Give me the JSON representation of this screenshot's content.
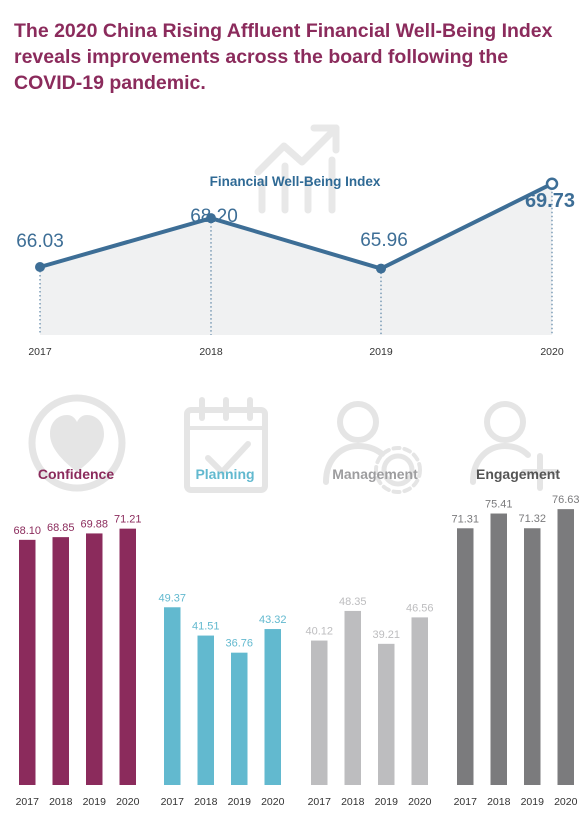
{
  "headline": {
    "line1": "The 2020 China Rising Affluent Financial Well-Being Index",
    "line2": "reveals improvements across the board following the",
    "line3": "COVID-19 pandemic."
  },
  "colors": {
    "headline": "#8b2b5c",
    "line_chart": "#3d6e96",
    "line_chart_title": "#2f6a95",
    "confidence": "#8b2b5c",
    "planning": "#62b9cf",
    "management": "#bdbdbf",
    "engagement": "#7b7b7d",
    "icon_gray": "#e5e5e5"
  },
  "chart_data": [
    {
      "type": "line",
      "title": "Financial Well-Being Index",
      "x": [
        "2017",
        "2018",
        "2019",
        "2020"
      ],
      "values": [
        66.03,
        68.2,
        65.96,
        69.73
      ],
      "data_labels": [
        "66.03",
        "68.20",
        "65.96",
        "69.73"
      ],
      "fill_under": true,
      "grid": false
    },
    {
      "type": "bar",
      "title": "Confidence",
      "icon": "heart-icon",
      "categories": [
        "2017",
        "2018",
        "2019",
        "2020"
      ],
      "values": [
        68.1,
        68.85,
        69.88,
        71.21
      ],
      "data_labels": [
        "68.10",
        "68.85",
        "69.88",
        "71.21"
      ],
      "color": "#8b2b5c"
    },
    {
      "type": "bar",
      "title": "Planning",
      "icon": "calendar-check-icon",
      "categories": [
        "2017",
        "2018",
        "2019",
        "2020"
      ],
      "values": [
        49.37,
        41.51,
        36.76,
        43.32
      ],
      "data_labels": [
        "49.37",
        "41.51",
        "36.76",
        "43.32"
      ],
      "color": "#62b9cf"
    },
    {
      "type": "bar",
      "title": "Management",
      "icon": "person-gear-icon",
      "categories": [
        "2017",
        "2018",
        "2019",
        "2020"
      ],
      "values": [
        40.12,
        48.35,
        39.21,
        46.56
      ],
      "data_labels": [
        "40.12",
        "48.35",
        "39.21",
        "46.56"
      ],
      "color": "#bdbdbf"
    },
    {
      "type": "bar",
      "title": "Engagement",
      "icon": "person-plus-icon",
      "categories": [
        "2017",
        "2018",
        "2019",
        "2020"
      ],
      "values": [
        71.31,
        75.41,
        71.32,
        76.63
      ],
      "data_labels": [
        "71.31",
        "75.41",
        "71.32",
        "76.63"
      ],
      "color": "#7b7b7d"
    }
  ]
}
